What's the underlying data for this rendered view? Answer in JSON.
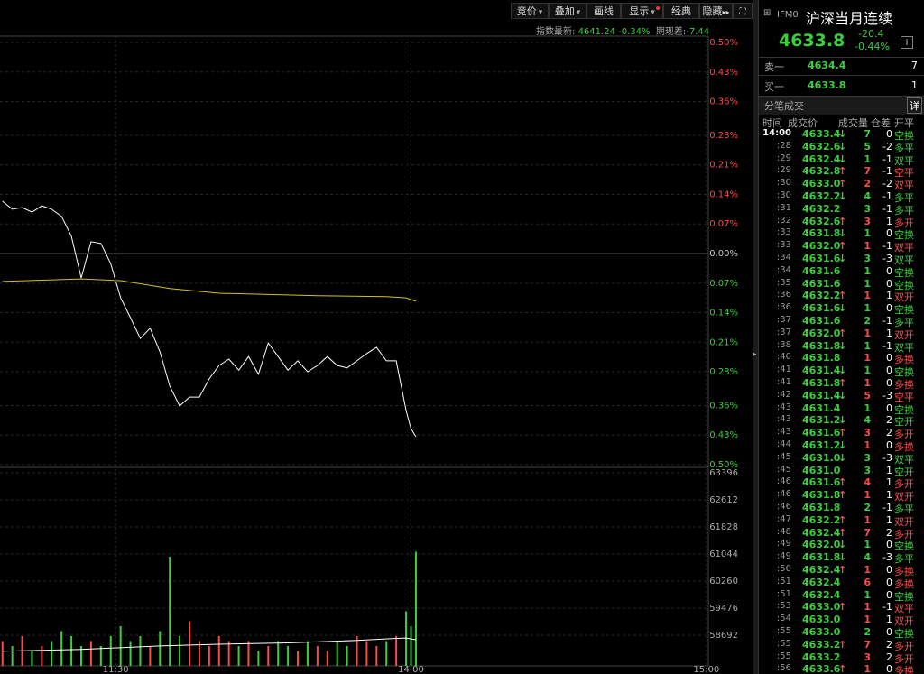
{
  "toolbar": {
    "buttons": [
      "竞价",
      "叠加",
      "画线",
      "显示",
      "经典",
      "隐藏"
    ]
  },
  "index_info": {
    "label": "指数最新:",
    "value": "4641.24",
    "change": "-0.34%",
    "basis_label": "期现差:",
    "basis": "-7.44"
  },
  "chart_data": [
    {
      "type": "line",
      "xlim": [
        96.5,
        240.4
      ],
      "ylim": [
        -0.5,
        0.5
      ],
      "grid": true,
      "up_color": "#ff4a4a",
      "down_color": "#3ccf3c",
      "zero_color": "#cccccc",
      "yticks": [
        {
          "value": 0.5,
          "label": "0.50%"
        },
        {
          "value": 0.43,
          "label": "0.43%"
        },
        {
          "value": 0.36,
          "label": "0.36%"
        },
        {
          "value": 0.28,
          "label": "0.28%"
        },
        {
          "value": 0.21,
          "label": "0.21%"
        },
        {
          "value": 0.14,
          "label": "0.14%"
        },
        {
          "value": 0.07,
          "label": "0.07%"
        },
        {
          "value": 0,
          "label": "0.00%"
        },
        {
          "value": -0.07,
          "label": "0.07%"
        },
        {
          "value": -0.14,
          "label": "0.14%"
        },
        {
          "value": -0.21,
          "label": "0.21%"
        },
        {
          "value": -0.28,
          "label": "0.28%"
        },
        {
          "value": -0.36,
          "label": "0.36%"
        },
        {
          "value": -0.43,
          "label": "0.43%"
        },
        {
          "value": -0.5,
          "label": "0.50%"
        }
      ],
      "series": [
        {
          "color": "#ffffff",
          "x": [
            97,
            99,
            101,
            103,
            105,
            107,
            109,
            111,
            113,
            115,
            117,
            119,
            121,
            123,
            125,
            127,
            129,
            131,
            133,
            135,
            137,
            139,
            141,
            143,
            145,
            147,
            149,
            151,
            153,
            155,
            157,
            159,
            161,
            163,
            165,
            167,
            169,
            171,
            173,
            175,
            177,
            179,
            180,
            181
          ],
          "values": [
            0.124,
            0.105,
            0.109,
            0.098,
            0.113,
            0.105,
            0.088,
            0.041,
            -0.058,
            0.028,
            0.024,
            -0.024,
            -0.105,
            -0.152,
            -0.201,
            -0.177,
            -0.233,
            -0.314,
            -0.361,
            -0.34,
            -0.34,
            -0.297,
            -0.265,
            -0.25,
            -0.276,
            -0.244,
            -0.286,
            -0.212,
            -0.244,
            -0.276,
            -0.254,
            -0.28,
            -0.265,
            -0.244,
            -0.265,
            -0.271,
            -0.254,
            -0.237,
            -0.222,
            -0.254,
            -0.254,
            -0.372,
            -0.415,
            -0.434
          ]
        },
        {
          "color": "#d4c21a",
          "x": [
            97,
            113,
            121,
            131,
            141,
            161,
            175,
            179,
            181
          ],
          "values": [
            -0.066,
            -0.06,
            -0.064,
            -0.083,
            -0.094,
            -0.1,
            -0.102,
            -0.105,
            -0.113
          ]
        }
      ]
    },
    {
      "type": "bar",
      "xlim": [
        96.5,
        240.4
      ],
      "ylim": [
        57803,
        63553
      ],
      "y2lim": [
        0,
        40
      ],
      "xticks": [
        {
          "value": 120,
          "label": "11:30"
        },
        {
          "value": 180,
          "label": "14:00"
        },
        {
          "value": 240,
          "label": "15:00"
        }
      ],
      "yticks": [
        63396,
        62612,
        61828,
        61044,
        60260,
        59476,
        58692
      ],
      "series": [
        {
          "type": "bar",
          "axis": "y2",
          "up_color": "#ff4a4a",
          "down_color": "#3ccf3c",
          "x": [
            97,
            99,
            101,
            103,
            105,
            107,
            109,
            111,
            113,
            115,
            117,
            119,
            121,
            123,
            125,
            127,
            129,
            131,
            133,
            135,
            137,
            139,
            141,
            143,
            145,
            147,
            149,
            151,
            153,
            155,
            157,
            159,
            161,
            163,
            165,
            167,
            169,
            171,
            173,
            175,
            177,
            179,
            180,
            181
          ],
          "values": [
            5,
            4,
            6,
            3,
            4,
            5,
            7,
            6,
            4,
            5,
            4,
            6,
            8,
            5,
            6,
            4,
            7,
            22,
            6,
            9,
            5,
            4,
            6,
            5,
            4,
            5,
            3,
            4,
            5,
            4,
            3,
            5,
            4,
            3,
            5,
            4,
            6,
            5,
            4,
            5,
            6,
            11,
            8,
            23
          ]
        },
        {
          "type": "line",
          "color": "#ffffff",
          "x": [
            97,
            113,
            129,
            141,
            155,
            169,
            177,
            179,
            181
          ],
          "values": [
            58230,
            58280,
            58380,
            58430,
            58470,
            58540,
            58600,
            58610,
            58560
          ]
        }
      ]
    }
  ],
  "quote": {
    "code": "IFM0",
    "name": "沪深当月连续",
    "price": "4633.8",
    "change": "-20.4",
    "change_pct": "-0.44%",
    "ask_label": "卖一",
    "ask_price": "4634.4",
    "ask_vol": "7",
    "bid_label": "买一",
    "bid_price": "4633.8",
    "bid_vol": "1"
  },
  "trades": {
    "title": "分笔成交",
    "detail": "详",
    "columns": [
      "时间",
      "成交价",
      "成交量",
      "仓差",
      "开平"
    ],
    "rows": [
      {
        "time": "14:00",
        "price": "4633.4",
        "arrow": "↓",
        "arrow_color": "#3ccf3c",
        "volume": "7",
        "oi_change": "0",
        "type": "空换",
        "color": "#3ccf3c"
      },
      {
        "time": ":28",
        "price": "4632.6",
        "arrow": "↓",
        "arrow_color": "#3ccf3c",
        "volume": "5",
        "oi_change": "-2",
        "type": "多平",
        "color": "#3ccf3c"
      },
      {
        "time": ":29",
        "price": "4632.4",
        "arrow": "↓",
        "arrow_color": "#3ccf3c",
        "volume": "1",
        "oi_change": "-1",
        "type": "双平",
        "color": "#3ccf3c"
      },
      {
        "time": ":29",
        "price": "4632.8",
        "arrow": "↑",
        "arrow_color": "#ff4a4a",
        "volume": "7",
        "oi_change": "-1",
        "type": "空平",
        "color": "#ff4a4a"
      },
      {
        "time": ":30",
        "price": "4633.0",
        "arrow": "↑",
        "arrow_color": "#ff4a4a",
        "volume": "2",
        "oi_change": "-2",
        "type": "双平",
        "color": "#ff4a4a"
      },
      {
        "time": ":30",
        "price": "4632.2",
        "arrow": "↓",
        "arrow_color": "#3ccf3c",
        "volume": "4",
        "oi_change": "-1",
        "type": "多平",
        "color": "#3ccf3c"
      },
      {
        "time": ":31",
        "price": "4632.2",
        "volume": "3",
        "oi_change": "-1",
        "type": "多平",
        "color": "#3ccf3c"
      },
      {
        "time": ":32",
        "price": "4632.6",
        "arrow": "↑",
        "arrow_color": "#ff4a4a",
        "volume": "3",
        "oi_change": "1",
        "type": "多开",
        "color": "#ff4a4a"
      },
      {
        "time": ":33",
        "price": "4631.8",
        "arrow": "↓",
        "arrow_color": "#3ccf3c",
        "volume": "1",
        "oi_change": "0",
        "type": "空换",
        "color": "#3ccf3c"
      },
      {
        "time": ":33",
        "price": "4632.0",
        "arrow": "↑",
        "arrow_color": "#ff4a4a",
        "volume": "1",
        "oi_change": "-1",
        "type": "双平",
        "color": "#ff4a4a"
      },
      {
        "time": ":34",
        "price": "4631.6",
        "arrow": "↓",
        "arrow_color": "#3ccf3c",
        "volume": "3",
        "oi_change": "-3",
        "type": "双平",
        "color": "#3ccf3c"
      },
      {
        "time": ":34",
        "price": "4631.6",
        "volume": "1",
        "oi_change": "0",
        "type": "空换",
        "color": "#3ccf3c"
      },
      {
        "time": ":35",
        "price": "4631.6",
        "volume": "1",
        "oi_change": "0",
        "type": "空换",
        "color": "#3ccf3c"
      },
      {
        "time": ":36",
        "price": "4632.2",
        "arrow": "↑",
        "arrow_color": "#ff4a4a",
        "volume": "1",
        "oi_change": "1",
        "type": "双开",
        "color": "#ff4a4a"
      },
      {
        "time": ":36",
        "price": "4631.6",
        "arrow": "↓",
        "arrow_color": "#3ccf3c",
        "volume": "1",
        "oi_change": "0",
        "type": "空换",
        "color": "#3ccf3c"
      },
      {
        "time": ":37",
        "price": "4631.6",
        "volume": "2",
        "oi_change": "-1",
        "type": "多平",
        "color": "#3ccf3c"
      },
      {
        "time": ":37",
        "price": "4632.0",
        "arrow": "↑",
        "arrow_color": "#ff4a4a",
        "volume": "1",
        "oi_change": "1",
        "type": "双开",
        "color": "#ff4a4a"
      },
      {
        "time": ":38",
        "price": "4631.8",
        "arrow": "↓",
        "arrow_color": "#3ccf3c",
        "volume": "1",
        "oi_change": "-1",
        "type": "双平",
        "color": "#3ccf3c"
      },
      {
        "time": ":40",
        "price": "4631.8",
        "volume": "1",
        "oi_change": "0",
        "type": "多换",
        "color": "#ff4a4a"
      },
      {
        "time": ":41",
        "price": "4631.4",
        "arrow": "↓",
        "arrow_color": "#3ccf3c",
        "volume": "1",
        "oi_change": "0",
        "type": "空换",
        "color": "#3ccf3c"
      },
      {
        "time": ":41",
        "price": "4631.8",
        "arrow": "↑",
        "arrow_color": "#ff4a4a",
        "volume": "1",
        "oi_change": "0",
        "type": "多换",
        "color": "#ff4a4a"
      },
      {
        "time": ":42",
        "price": "4631.4",
        "arrow": "↓",
        "arrow_color": "#3ccf3c",
        "volume": "5",
        "oi_change": "-3",
        "type": "空平",
        "color": "#ff4a4a"
      },
      {
        "time": ":43",
        "price": "4631.4",
        "volume": "1",
        "oi_change": "0",
        "type": "空换",
        "color": "#3ccf3c"
      },
      {
        "time": ":43",
        "price": "4631.2",
        "arrow": "↓",
        "arrow_color": "#3ccf3c",
        "volume": "4",
        "oi_change": "2",
        "type": "空开",
        "color": "#3ccf3c"
      },
      {
        "time": ":43",
        "price": "4631.6",
        "arrow": "↑",
        "arrow_color": "#ff4a4a",
        "volume": "3",
        "oi_change": "2",
        "type": "多开",
        "color": "#ff4a4a"
      },
      {
        "time": ":44",
        "price": "4631.2",
        "arrow": "↓",
        "arrow_color": "#3ccf3c",
        "volume": "1",
        "oi_change": "0",
        "type": "多换",
        "color": "#ff4a4a"
      },
      {
        "time": ":45",
        "price": "4631.0",
        "arrow": "↓",
        "arrow_color": "#3ccf3c",
        "volume": "3",
        "oi_change": "-3",
        "type": "双平",
        "color": "#3ccf3c"
      },
      {
        "time": ":45",
        "price": "4631.0",
        "volume": "3",
        "oi_change": "1",
        "type": "空开",
        "color": "#3ccf3c"
      },
      {
        "time": ":46",
        "price": "4631.6",
        "arrow": "↑",
        "arrow_color": "#ff4a4a",
        "volume": "4",
        "oi_change": "1",
        "type": "多开",
        "color": "#ff4a4a"
      },
      {
        "time": ":46",
        "price": "4631.8",
        "arrow": "↑",
        "arrow_color": "#ff4a4a",
        "volume": "1",
        "oi_change": "1",
        "type": "双开",
        "color": "#ff4a4a"
      },
      {
        "time": ":46",
        "price": "4631.8",
        "volume": "2",
        "oi_change": "-1",
        "type": "多平",
        "color": "#3ccf3c"
      },
      {
        "time": ":47",
        "price": "4632.2",
        "arrow": "↑",
        "arrow_color": "#ff4a4a",
        "volume": "1",
        "oi_change": "1",
        "type": "双开",
        "color": "#ff4a4a"
      },
      {
        "time": ":48",
        "price": "4632.4",
        "arrow": "↑",
        "arrow_color": "#ff4a4a",
        "volume": "7",
        "oi_change": "2",
        "type": "多开",
        "color": "#ff4a4a"
      },
      {
        "time": ":49",
        "price": "4632.0",
        "arrow": "↓",
        "arrow_color": "#3ccf3c",
        "volume": "1",
        "oi_change": "0",
        "type": "空换",
        "color": "#3ccf3c"
      },
      {
        "time": ":49",
        "price": "4631.8",
        "arrow": "↓",
        "arrow_color": "#3ccf3c",
        "volume": "4",
        "oi_change": "-3",
        "type": "多平",
        "color": "#3ccf3c"
      },
      {
        "time": ":50",
        "price": "4632.4",
        "arrow": "↑",
        "arrow_color": "#ff4a4a",
        "volume": "1",
        "oi_change": "0",
        "type": "多换",
        "color": "#ff4a4a"
      },
      {
        "time": ":51",
        "price": "4632.4",
        "volume": "6",
        "oi_change": "0",
        "type": "多换",
        "color": "#ff4a4a"
      },
      {
        "time": ":51",
        "price": "4632.4",
        "volume": "1",
        "oi_change": "0",
        "type": "空换",
        "color": "#3ccf3c"
      },
      {
        "time": ":53",
        "price": "4633.0",
        "arrow": "↑",
        "arrow_color": "#ff4a4a",
        "volume": "1",
        "oi_change": "-1",
        "type": "双平",
        "color": "#ff4a4a"
      },
      {
        "time": ":54",
        "price": "4633.0",
        "volume": "1",
        "oi_change": "1",
        "type": "双开",
        "color": "#ff4a4a"
      },
      {
        "time": ":55",
        "price": "4633.0",
        "volume": "2",
        "oi_change": "0",
        "type": "空换",
        "color": "#3ccf3c"
      },
      {
        "time": ":55",
        "price": "4633.2",
        "arrow": "↑",
        "arrow_color": "#ff4a4a",
        "volume": "7",
        "oi_change": "2",
        "type": "多开",
        "color": "#ff4a4a"
      },
      {
        "time": ":55",
        "price": "4633.2",
        "volume": "3",
        "oi_change": "2",
        "type": "多开",
        "color": "#ff4a4a"
      },
      {
        "time": ":56",
        "price": "4633.6",
        "arrow": "↑",
        "arrow_color": "#ff4a4a",
        "volume": "1",
        "oi_change": "0",
        "type": "多换",
        "color": "#ff4a4a"
      }
    ]
  }
}
